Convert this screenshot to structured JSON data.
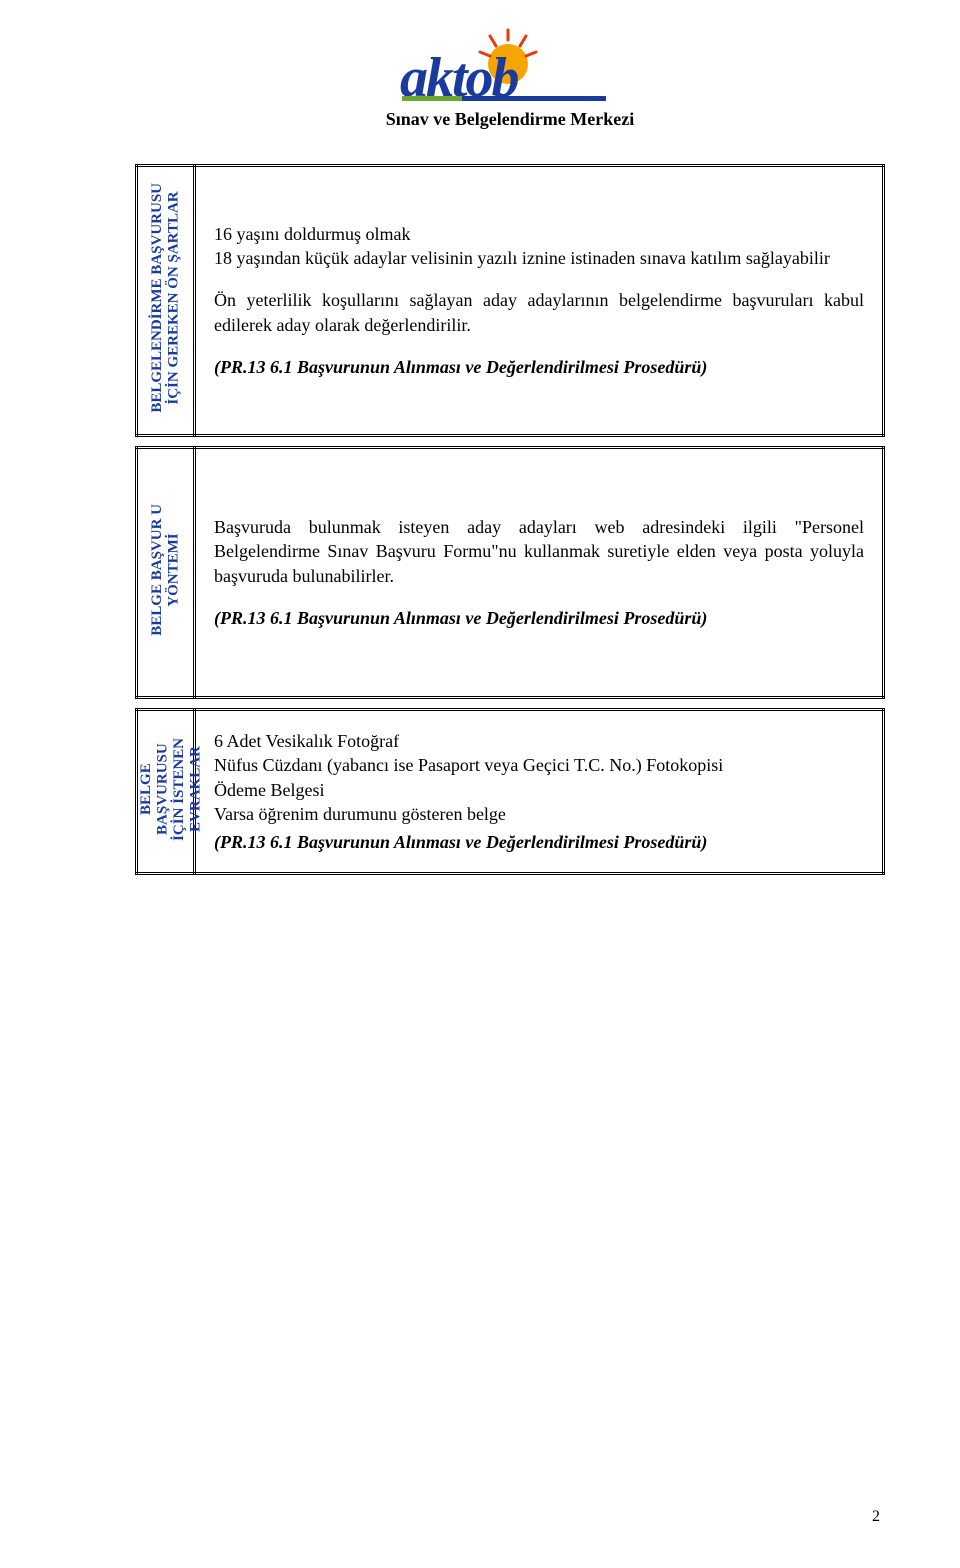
{
  "header": {
    "logo_text": "aktob",
    "logo_text_color": "#1a3a9e",
    "sun_color": "#f6a500",
    "ray_color": "#e63b12",
    "bar_color_left": "#6da72f",
    "bar_color_right": "#1a3a9e",
    "title": "Sınav ve Belgelendirme Merkezi"
  },
  "sections": [
    {
      "side_label": "BELGELENDİRME BAŞVURUSU\nİÇİN GEREKEN ÖN ŞARTLAR",
      "side_color": "#1a3a9e",
      "min_height": 270,
      "paragraphs": [
        "16 yaşını doldurmuş olmak",
        "18 yaşından küçük adaylar velisinin yazılı iznine istinaden sınava katılım sağlayabilir",
        "Ön yeterlilik koşullarını sağlayan aday adaylarının belgelendirme başvuruları kabul edilerek aday olarak değerlendirilir."
      ],
      "reference": "(PR.13 6.1 Başvurunun Alınması ve Değerlendirilmesi Prosedürü)"
    },
    {
      "side_label": "BELGE BAŞVUR U\nYÖNTEMİ",
      "side_color": "#1a3a9e",
      "min_height": 250,
      "paragraphs": [
        "Başvuruda bulunmak isteyen aday adayları web adresindeki ilgili \"Personel Belgelendirme Sınav Başvuru Formu\"nu kullanmak suretiyle elden veya posta yoluyla başvuruda bulunabilirler."
      ],
      "reference": "(PR.13 6.1 Başvurunun Alınması ve Değerlendirilmesi Prosedürü)"
    },
    {
      "side_label": "BELGE\nBAŞVURUSU\nİÇİN İSTENEN\nEVRAKLAR",
      "side_color": "#1a3a9e",
      "min_height": 140,
      "paragraphs": [
        "6 Adet Vesikalık Fotoğraf",
        "Nüfus Cüzdanı (yabancı ise Pasaport veya Geçici T.C. No.) Fotokopisi",
        "Ödeme Belgesi",
        "Varsa öğrenim durumunu gösteren belge"
      ],
      "reference": "(PR.13 6.1 Başvurunun Alınması ve Değerlendirilmesi Prosedürü)",
      "compact": true
    }
  ],
  "page_number": "2"
}
